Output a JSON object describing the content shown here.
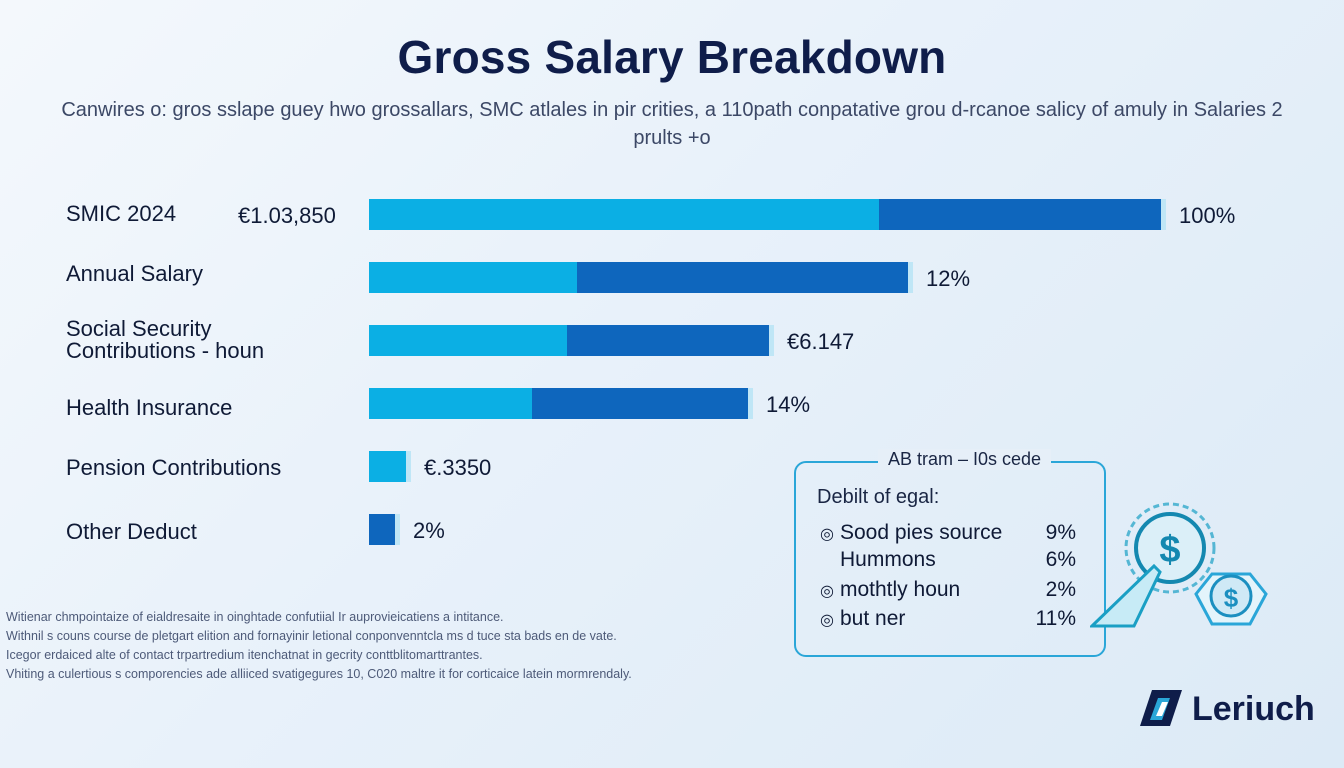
{
  "title": "Gross Salary Breakdown",
  "subtitle": "Canwires o: gros sslape guey hwo grossallars, SMC atlales in pir crities, a 110path conpatative grou d-rcanoe salicy of amuly in Salaries 2 prults +o",
  "chart_data": {
    "type": "bar",
    "orientation": "horizontal",
    "stacked": true,
    "categories": [
      "SMIC 2024",
      "Annual Salary",
      "Social Security Contributions - houn",
      "Health Insurance",
      "Pension Contributions",
      "Other Deduct"
    ],
    "row_values": [
      "€1.03,850",
      "",
      "",
      "",
      "",
      ""
    ],
    "end_labels": [
      "100%",
      "12%",
      "€6.147",
      "14%",
      "€.3350",
      "2%"
    ],
    "series": [
      {
        "values": [
          51,
          20.8,
          19.8,
          16.3,
          3.7,
          0
        ]
      },
      {
        "values": [
          28.2,
          33.1,
          20.2,
          21.6,
          0,
          2.6
        ]
      }
    ],
    "xlim": [
      0,
      80
    ]
  },
  "legend": {
    "title": "AB tram – I0s cede",
    "subtitle": "Debilt of egal:",
    "items": [
      {
        "bullet": "◎",
        "label": "Sood pies source",
        "value": "9%"
      },
      {
        "bullet": "",
        "label": "Hummons",
        "value": "6%"
      },
      {
        "bullet": "◎",
        "label": "mothtly houn",
        "value": "2%"
      },
      {
        "bullet": "◎",
        "label": "but ner",
        "value": "11%"
      }
    ]
  },
  "footnote": [
    "Witienar chmpointaize of eialdresaite in oinghtade confutiial Ir auprovieicatiens a intitance.",
    "Withnil s couns course de pletgart elition and fornayinir letional conponvenntcla ms d tuce sta bads en de vate.",
    "Icegor erdaiced alte of contact trpartredium itenchatnat in gecrity conttblitomarttrantes.",
    "Vhiting a culertious s comporencies ade alliiced svatigegures 10, C020 maltre it for corticaice latein mormrendaly."
  ],
  "icons": {
    "main": "dollar-coin-icon",
    "secondary": "dollar-coin-icon"
  },
  "brand": {
    "name": "Leriuch"
  },
  "colors": {
    "series_light": "#0bafe4",
    "series_dark": "#0e66bd",
    "title": "#0f1d4a",
    "accent": "#2aa6d8"
  }
}
